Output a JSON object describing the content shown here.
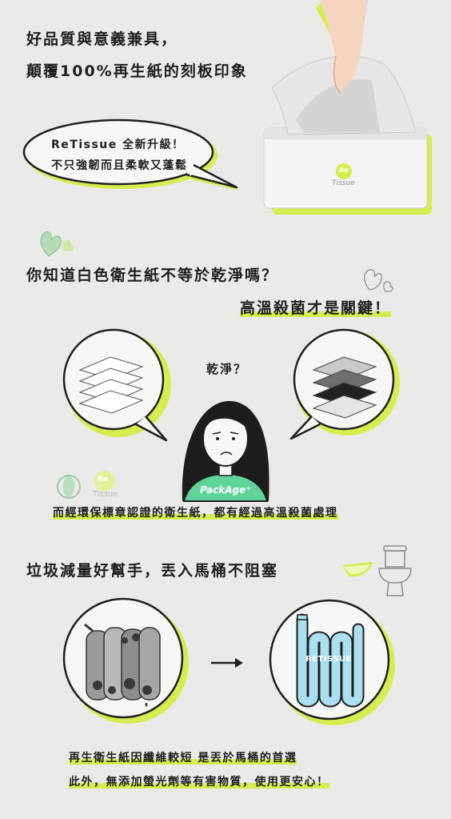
{
  "section1": {
    "headline_line1": "好品質與意義兼具，",
    "headline_line2": "顛覆100%再生紙的刻板印象",
    "bubble_line1": "ReTissue 全新升級！",
    "bubble_line2": "不只強韌而且柔軟又蓬鬆",
    "box_logo_mark": "Re",
    "box_logo_text": "Tissue"
  },
  "section2": {
    "question": "你知道白色衛生紙不等於乾淨嗎？",
    "answer": "高溫殺菌才是關鍵！",
    "person_thought": "乾淨？",
    "shirt_text": "PackAge⁺",
    "logo_mark": "Re",
    "logo_text": "Tissue",
    "caption": "而經環保標章認證的衛生紙，都有經過高溫殺菌處理"
  },
  "section3": {
    "headline": "垃圾減量好幫手，丟入馬桶不阻塞",
    "pipe_label": "RETISSUE",
    "caption_line1": "再生衛生紙因纖維較短 是丟於馬桶的首選",
    "caption_line2": "此外，無添加螢光劑等有害物質，使用更安心！"
  },
  "colors": {
    "accent": "#d6ec4e",
    "background": "#e9e9e7",
    "text": "#1f1f1f",
    "pipe_blue": "#a9dff0",
    "shirt_green": "#5fd39a"
  }
}
